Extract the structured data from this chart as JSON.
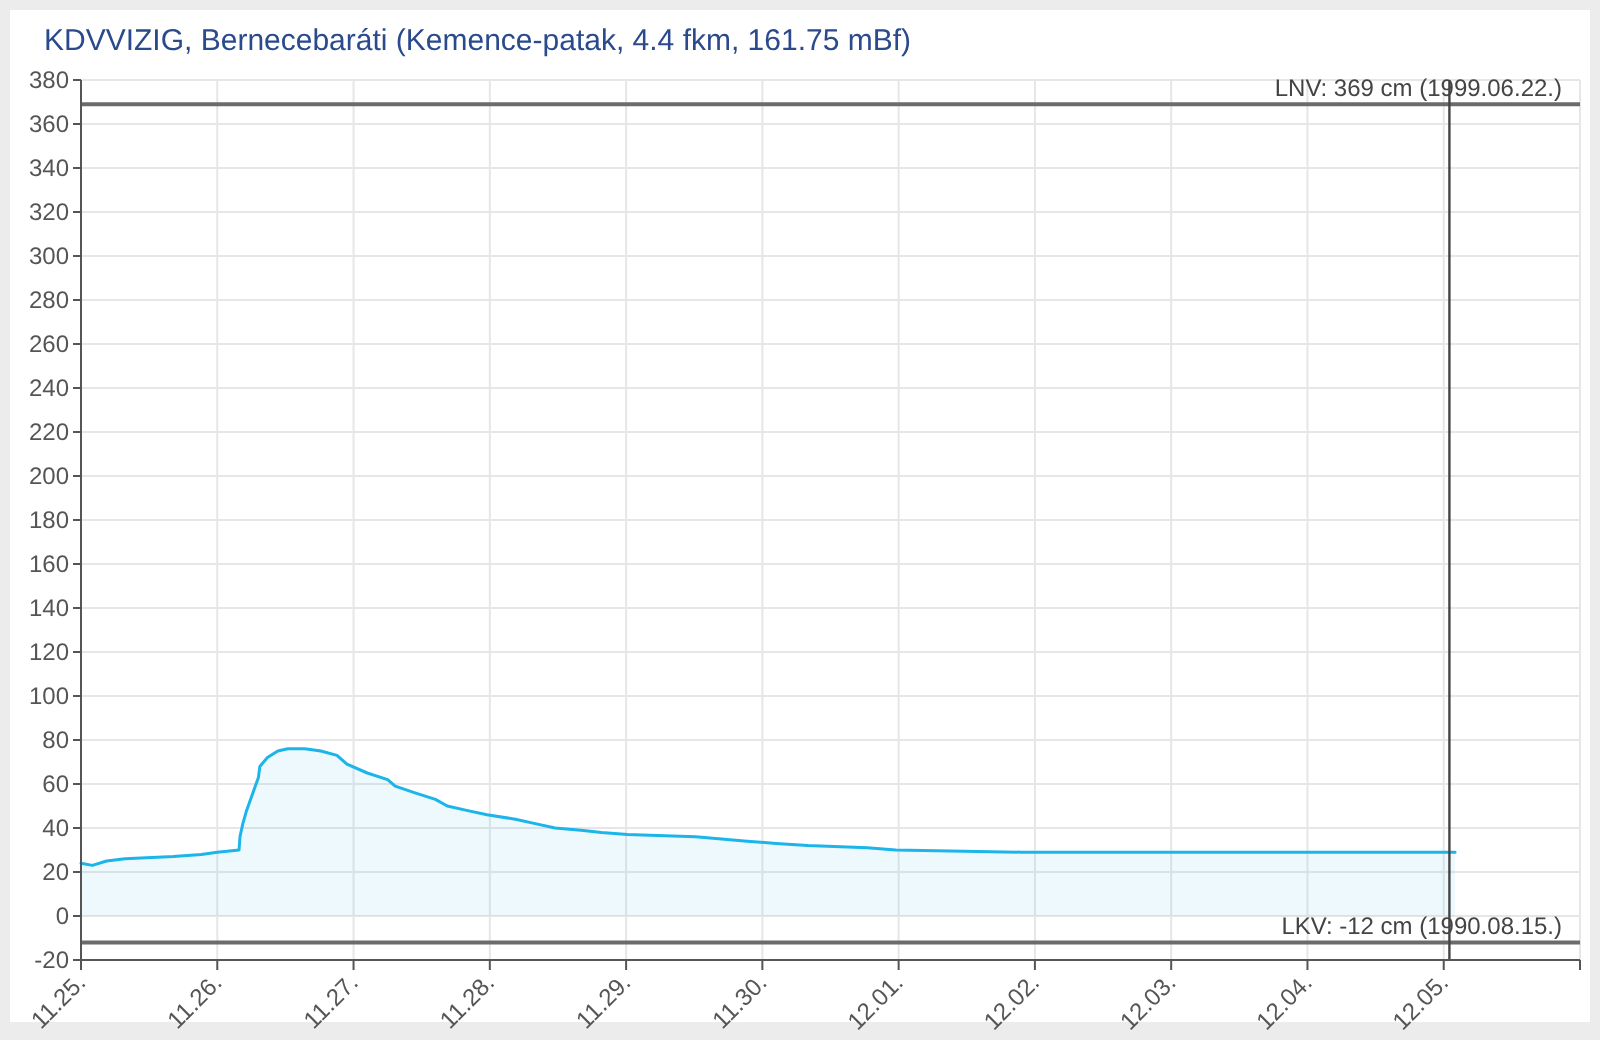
{
  "chart_data": {
    "type": "area",
    "title": "KDVVIZIG, Bernecebaráti (Kemence-patak, 4.4 fkm, 161.75 mBf)",
    "x": [
      "--11-25T00:00",
      "--11-25T02:00",
      "--11-25T04:30",
      "--11-25T07:45",
      "--11-25T16:15",
      "--11-25T21:10",
      "--11-26T00:00",
      "--11-26T03:50",
      "--11-26T04:00",
      "--11-26T04:30",
      "--11-26T05:10",
      "--11-26T06:00",
      "--11-26T07:15",
      "--11-26T07:30",
      "--11-26T08:50",
      "--11-26T10:40",
      "--11-26T12:25",
      "--11-26T15:25",
      "--11-26T18:15",
      "--11-26T21:05",
      "--11-26T22:50",
      "--11-27T02:25",
      "--11-27T06:00",
      "--11-27T07:20",
      "--11-27T10:50",
      "--11-27T14:25",
      "--11-27T16:30",
      "--11-27T19:55",
      "--11-27T23:30",
      "--11-28T04:30",
      "--11-28T08:00",
      "--11-28T11:30",
      "--11-28T16:05",
      "--11-28T19:40",
      "--11-29T00:15",
      "--11-29T12:15",
      "--11-29T21:20",
      "--11-30T02:25",
      "--11-30T08:00",
      "--11-30T18:30",
      "--11-30T23:30",
      "--12-01T21:40",
      "--12-05T02:00"
    ],
    "series": [
      {
        "color": "#1cb5ea",
        "values": [
          24,
          23,
          25,
          26,
          27,
          28,
          29,
          30,
          36,
          42,
          48,
          54,
          63,
          68,
          72,
          75,
          76,
          76,
          75,
          73,
          69,
          65,
          62,
          59,
          56,
          53,
          50,
          48,
          46,
          44,
          42,
          40,
          39,
          38,
          37,
          36,
          34,
          33,
          32,
          31,
          30,
          29,
          29
        ]
      }
    ],
    "xlim": [
      "--11-25",
      "--12-06"
    ],
    "xticks": [
      {
        "value": "--11-25",
        "label": "11.25."
      },
      {
        "value": "--11-26",
        "label": "11.26."
      },
      {
        "value": "--11-27",
        "label": "11.27."
      },
      {
        "value": "--11-28",
        "label": "11.28."
      },
      {
        "value": "--11-29",
        "label": "11.29."
      },
      {
        "value": "--11-30",
        "label": "11.30."
      },
      {
        "value": "--12-01",
        "label": "12.01."
      },
      {
        "value": "--12-02",
        "label": "12.02."
      },
      {
        "value": "--12-03",
        "label": "12.03."
      },
      {
        "value": "--12-04",
        "label": "12.04."
      },
      {
        "value": "--12-05",
        "label": "12.05."
      },
      {
        "value": "--12-06",
        "label": null
      }
    ],
    "ylim": [
      -20,
      380
    ],
    "yticks": [
      -20,
      0,
      20,
      40,
      60,
      80,
      100,
      120,
      140,
      160,
      180,
      200,
      220,
      240,
      260,
      280,
      300,
      320,
      340,
      360,
      380
    ],
    "grid": true,
    "ref_lines": [
      {
        "axis": "y",
        "value": 369,
        "label": "LNV: 369 cm (1999.06.22.)",
        "color": "#6b6b6b"
      },
      {
        "axis": "y",
        "value": -12,
        "label": "LKV: -12 cm (1990.08.15.)",
        "color": "#6b6b6b"
      },
      {
        "axis": "x",
        "value": "--12-05T01:00",
        "color": "#444444"
      }
    ]
  }
}
